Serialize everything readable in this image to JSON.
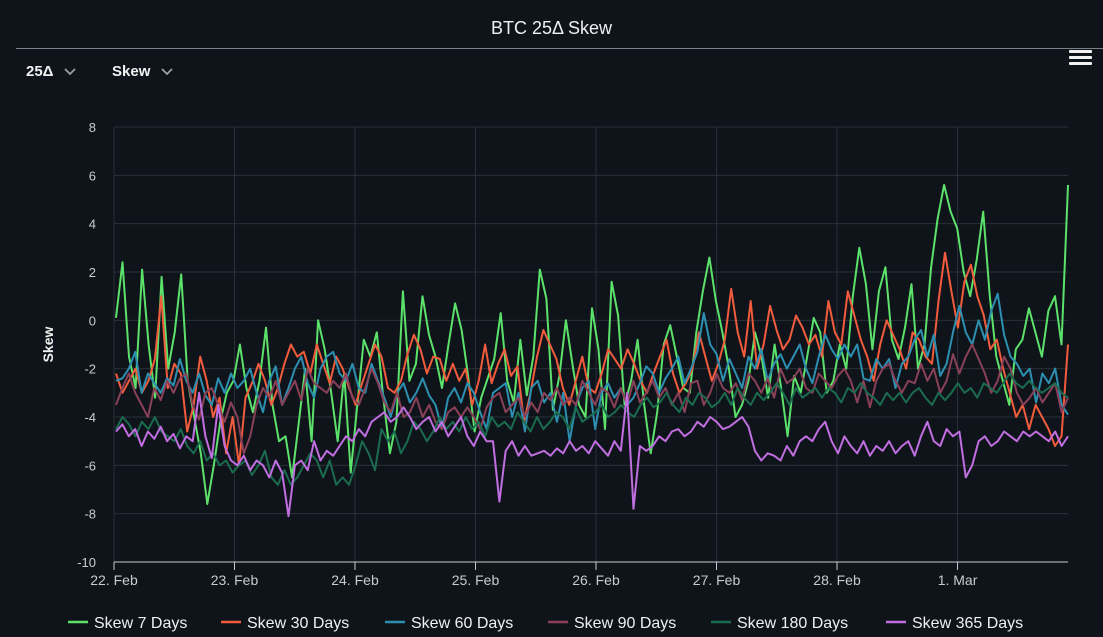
{
  "header": {
    "title": "BTC 25Δ Skew",
    "delta_selector": "25Δ",
    "metric_selector": "Skew"
  },
  "colors": {
    "background": "#0f141b",
    "grid": "#2a3038",
    "axis": "#c8ccd1"
  },
  "chart_data": {
    "type": "line",
    "title": "BTC 25Δ Skew",
    "ylabel": "Skew",
    "xlabel": "",
    "ylim": [
      -10,
      8
    ],
    "yticks": [
      8,
      6,
      4,
      2,
      0,
      -2,
      -4,
      -6,
      -8,
      -10
    ],
    "xlim": [
      "2023-02-22",
      "2023-03-01T22:00"
    ],
    "xticks": [
      {
        "x": "2023-02-22",
        "label": "22. Feb"
      },
      {
        "x": "2023-02-23",
        "label": "23. Feb"
      },
      {
        "x": "2023-02-24",
        "label": "24. Feb"
      },
      {
        "x": "2023-02-25",
        "label": "25. Feb"
      },
      {
        "x": "2023-02-26",
        "label": "26. Feb"
      },
      {
        "x": "2023-02-27",
        "label": "27. Feb"
      },
      {
        "x": "2023-02-28",
        "label": "28. Feb"
      },
      {
        "x": "2023-03-01",
        "label": "1. Mar"
      }
    ],
    "grid": true,
    "legend_position": "bottom",
    "series": [
      {
        "name": "Skew 7 Days",
        "color": "#5ce26a",
        "values": [
          0.1,
          2.4,
          -1.5,
          -2.8,
          2.1,
          -1.0,
          -3.2,
          1.8,
          -2.0,
          -0.5,
          1.9,
          -2.5,
          -4.0,
          -5.5,
          -7.6,
          -6.0,
          -4.2,
          -3.0,
          -2.5,
          -1.0,
          -2.8,
          -3.8,
          -2.5,
          -0.3,
          -3.5,
          -5.0,
          -4.8,
          -6.5,
          -4.3,
          -2.0,
          -5.0,
          0.0,
          -1.2,
          -3.0,
          -5.0,
          -2.2,
          -6.3,
          -3.5,
          -0.8,
          -1.5,
          -0.5,
          -3.2,
          -5.5,
          -4.2,
          1.2,
          -2.5,
          -1.8,
          1.0,
          -0.6,
          -1.5,
          -2.8,
          -1.0,
          0.7,
          -0.4,
          -2.3,
          -4.6,
          -3.2,
          -2.4,
          -1.6,
          0.3,
          -2.5,
          -3.4,
          -0.8,
          -3.1,
          -1.5,
          2.1,
          0.9,
          -3.7,
          -2.3,
          0.0,
          -1.8,
          -3.5,
          -4.0,
          0.5,
          -1.2,
          -4.5,
          1.6,
          0.2,
          -3.5,
          -2.5,
          -0.8,
          -3.5,
          -5.5,
          -3.8,
          -1.0,
          -0.2,
          -1.5,
          -2.8,
          -3.0,
          -0.5,
          1.2,
          2.6,
          0.8,
          -0.5,
          -2.0,
          -4.0,
          -3.5,
          -2.5,
          -0.5,
          -1.5,
          -3.2,
          -1.0,
          -2.8,
          -4.8,
          -2.3,
          -3.0,
          -1.5,
          0.1,
          -0.5,
          -3.0,
          -2.5,
          -1.0,
          -2.0,
          1.0,
          3.0,
          1.5,
          -1.2,
          1.2,
          2.2,
          -0.8,
          -1.6,
          -0.3,
          1.5,
          -2.0,
          -1.0,
          2.2,
          4.2,
          5.6,
          4.5,
          3.8,
          2.0,
          1.0,
          2.5,
          4.5,
          1.0,
          -1.5,
          -2.5,
          -3.5,
          -1.2,
          -0.8,
          0.5,
          -0.5,
          -1.5,
          0.4,
          1.0,
          -1.0,
          5.6
        ]
      },
      {
        "name": "Skew 30 Days",
        "color": "#f15c3d",
        "values": [
          -2.2,
          -3.0,
          -2.5,
          -2.0,
          -3.0,
          -2.5,
          -1.6,
          1.0,
          -2.8,
          -1.8,
          -2.2,
          -4.6,
          -3.5,
          -1.5,
          -2.5,
          -4.0,
          -3.2,
          -5.5,
          -4.0,
          -6.0,
          -3.2,
          -2.6,
          -1.8,
          -2.5,
          -3.5,
          -2.8,
          -1.8,
          -1.0,
          -1.5,
          -1.3,
          -2.2,
          -1.0,
          -1.8,
          -2.6,
          -1.5,
          -2.0,
          -2.8,
          -3.5,
          -2.6,
          -1.8,
          -1.0,
          -1.5,
          -2.8,
          -3.0,
          -2.5,
          -1.4,
          -0.6,
          -1.2,
          -2.2,
          -1.5,
          -1.6,
          -2.5,
          -1.8,
          -2.5,
          -2.0,
          -3.5,
          -2.5,
          -1.0,
          -2.6,
          -1.8,
          -1.2,
          -2.3,
          -1.9,
          -4.2,
          -3.0,
          -1.5,
          -0.4,
          -1.0,
          -1.6,
          -2.8,
          -3.5,
          -2.5,
          -1.5,
          -2.8,
          -3.0,
          -2.2,
          -1.2,
          -1.6,
          -2.0,
          -1.2,
          -1.8,
          -2.5,
          -3.0,
          -2.2,
          -1.5,
          -0.8,
          -2.2,
          -3.0,
          -2.6,
          -2.0,
          -0.5,
          -1.5,
          -2.5,
          -1.8,
          -0.8,
          1.3,
          -0.5,
          -1.5,
          0.8,
          -2.0,
          -1.0,
          0.6,
          -0.4,
          -1.2,
          -0.8,
          0.2,
          -0.3,
          -1.0,
          -0.6,
          -1.5,
          0.8,
          -0.5,
          -1.0,
          1.2,
          0.2,
          -0.8,
          -1.5,
          -2.5,
          -1.0,
          0.0,
          -0.6,
          -1.2,
          -2.0,
          -0.5,
          -0.8,
          -1.5,
          -1.8,
          0.8,
          2.8,
          1.2,
          -0.3,
          1.6,
          2.3,
          1.0,
          0.2,
          -1.2,
          -0.8,
          -2.0,
          -3.0,
          -4.0,
          -3.5,
          -4.5,
          -3.5,
          -4.0,
          -4.5,
          -5.2,
          -4.8,
          -1.0
        ]
      },
      {
        "name": "Skew 60 Days",
        "color": "#2d8fb0",
        "values": [
          -2.5,
          -2.4,
          -2.0,
          -1.3,
          -3.0,
          -2.2,
          -2.6,
          -3.0,
          -2.4,
          -2.7,
          -1.6,
          -2.5,
          -3.0,
          -2.2,
          -3.1,
          -3.5,
          -2.4,
          -3.0,
          -2.2,
          -2.8,
          -2.5,
          -2.0,
          -3.0,
          -3.8,
          -2.5,
          -1.9,
          -3.5,
          -2.8,
          -2.0,
          -1.5,
          -2.6,
          -3.2,
          -2.0,
          -1.5,
          -1.3,
          -2.2,
          -2.5,
          -1.8,
          -2.8,
          -3.0,
          -1.8,
          -2.5,
          -3.2,
          -4.0,
          -3.0,
          -2.6,
          -3.4,
          -3.0,
          -2.4,
          -3.1,
          -3.5,
          -4.5,
          -3.2,
          -2.8,
          -3.4,
          -2.6,
          -3.0,
          -3.8,
          -4.5,
          -3.0,
          -2.8,
          -2.6,
          -4.0,
          -3.0,
          -4.6,
          -2.8,
          -2.5,
          -3.4,
          -3.0,
          -4.2,
          -3.0,
          -5.0,
          -3.5,
          -2.8,
          -2.5,
          -4.5,
          -3.0,
          -2.6,
          -3.2,
          -2.8,
          -3.5,
          -3.2,
          -2.6,
          -1.9,
          -2.2,
          -3.0,
          -2.4,
          -2.0,
          -1.5,
          -2.6,
          -2.0,
          -1.3,
          0.3,
          -1.0,
          -1.4,
          -2.5,
          -1.6,
          -2.2,
          -2.8,
          -1.5,
          -2.0,
          -1.2,
          -2.5,
          -1.8,
          -1.4,
          -2.0,
          -1.5,
          -1.0,
          -2.0,
          -2.6,
          -1.5,
          -0.6,
          -1.2,
          -1.6,
          -1.0,
          -1.5,
          -1.0,
          -2.4,
          -2.5,
          -1.6,
          -2.0,
          -1.6,
          -2.8,
          -1.8,
          -1.5,
          -0.8,
          -0.4,
          -1.5,
          -0.6,
          -2.3,
          -1.8,
          -0.5,
          0.6,
          -0.5,
          -1.0,
          0.0,
          -0.8,
          0.4,
          1.1,
          -0.6,
          -1.5,
          -1.8,
          -2.3,
          -2.0,
          -3.4,
          -2.2,
          -2.6,
          -2.0,
          -3.5,
          -3.9
        ]
      },
      {
        "name": "Skew 90 Days",
        "color": "#8a4158",
        "values": [
          -3.5,
          -2.8,
          -2.2,
          -3.0,
          -3.5,
          -4.0,
          -2.8,
          -3.3,
          -2.5,
          -3.0,
          -2.4,
          -2.2,
          -3.5,
          -4.1,
          -3.0,
          -2.8,
          -3.5,
          -4.2,
          -3.4,
          -4.0,
          -5.5,
          -4.8,
          -3.5,
          -2.8,
          -3.2,
          -2.5,
          -3.5,
          -3.0,
          -2.5,
          -3.3,
          -2.0,
          -2.6,
          -2.8,
          -3.0,
          -2.5,
          -2.8,
          -2.2,
          -3.2,
          -3.5,
          -2.8,
          -2.0,
          -2.6,
          -3.4,
          -3.8,
          -3.0,
          -4.0,
          -3.8,
          -3.2,
          -4.0,
          -3.5,
          -4.2,
          -4.5,
          -3.8,
          -3.6,
          -4.0,
          -3.6,
          -4.0,
          -4.5,
          -3.6,
          -3.2,
          -3.0,
          -3.8,
          -3.5,
          -3.2,
          -4.0,
          -3.4,
          -3.8,
          -3.0,
          -3.3,
          -2.8,
          -3.5,
          -3.2,
          -3.5,
          -2.5,
          -3.0,
          -3.5,
          -2.8,
          -3.0,
          -3.6,
          -2.8,
          -3.5,
          -2.5,
          -3.4,
          -3.0,
          -2.5,
          -3.2,
          -2.8,
          -3.5,
          -3.0,
          -3.8,
          -2.6,
          -2.5,
          -3.5,
          -3.0,
          -2.2,
          -2.8,
          -3.0,
          -2.6,
          -3.3,
          -2.2,
          -2.5,
          -3.0,
          -2.4,
          -3.2,
          -2.0,
          -2.6,
          -2.4,
          -2.0,
          -2.8,
          -3.0,
          -2.2,
          -2.5,
          -2.8,
          -2.3,
          -2.0,
          -2.5,
          -3.4,
          -2.5,
          -3.6,
          -2.5,
          -2.0,
          -1.8,
          -2.5,
          -3.0,
          -2.5,
          -2.6,
          -1.8,
          -2.5,
          -2.0,
          -3.0,
          -2.5,
          -1.4,
          -2.2,
          -1.5,
          -1.0,
          -1.6,
          -2.2,
          -3.0,
          -2.5,
          -1.5,
          -2.0,
          -3.0,
          -3.5,
          -3.2,
          -2.8,
          -3.4,
          -3.0,
          -2.6,
          -3.8,
          -3.2
        ]
      },
      {
        "name": "Skew 180 Days",
        "color": "#1b6b4e",
        "values": [
          -4.5,
          -4.0,
          -4.3,
          -4.8,
          -4.2,
          -4.5,
          -4.0,
          -4.6,
          -4.8,
          -5.0,
          -4.5,
          -5.2,
          -5.5,
          -5.0,
          -5.8,
          -5.5,
          -6.0,
          -5.8,
          -6.3,
          -6.0,
          -5.8,
          -6.4,
          -6.0,
          -5.4,
          -6.5,
          -6.8,
          -6.2,
          -6.8,
          -6.5,
          -6.0,
          -5.5,
          -5.8,
          -6.5,
          -5.8,
          -6.8,
          -6.5,
          -6.8,
          -6.0,
          -5.0,
          -5.5,
          -6.2,
          -4.5,
          -5.0,
          -4.6,
          -5.5,
          -5.0,
          -4.2,
          -4.5,
          -5.0,
          -4.6,
          -4.0,
          -4.5,
          -4.2,
          -4.6,
          -4.0,
          -4.5,
          -4.2,
          -4.8,
          -4.0,
          -4.4,
          -4.2,
          -4.5,
          -3.8,
          -4.2,
          -4.6,
          -4.0,
          -4.5,
          -4.2,
          -3.8,
          -4.0,
          -4.5,
          -3.6,
          -4.2,
          -4.0,
          -3.8,
          -3.5,
          -4.0,
          -3.8,
          -3.5,
          -3.8,
          -4.0,
          -3.5,
          -3.2,
          -3.6,
          -3.4,
          -3.0,
          -3.5,
          -3.8,
          -3.2,
          -3.5,
          -3.0,
          -3.2,
          -3.6,
          -3.4,
          -3.0,
          -3.5,
          -2.8,
          -3.2,
          -3.5,
          -3.0,
          -3.3,
          -3.0,
          -2.6,
          -3.0,
          -3.5,
          -2.8,
          -3.2,
          -3.0,
          -2.8,
          -3.2,
          -2.8,
          -3.0,
          -3.4,
          -2.8,
          -3.0,
          -2.6,
          -3.0,
          -3.2,
          -3.5,
          -3.0,
          -3.3,
          -3.0,
          -3.4,
          -3.0,
          -2.8,
          -3.2,
          -3.5,
          -3.0,
          -3.3,
          -3.0,
          -2.6,
          -3.0,
          -2.8,
          -3.2,
          -2.6,
          -2.8,
          -3.0,
          -2.6,
          -2.2,
          -2.6,
          -2.8,
          -2.5,
          -2.8,
          -3.0,
          -2.8,
          -2.6,
          -3.0,
          -3.2
        ]
      },
      {
        "name": "Skew 365 Days",
        "color": "#c06ee0",
        "values": [
          -4.6,
          -4.3,
          -4.8,
          -4.5,
          -5.2,
          -4.6,
          -4.9,
          -4.4,
          -5.0,
          -4.7,
          -5.3,
          -4.8,
          -5.0,
          -3.0,
          -4.8,
          -5.7,
          -3.5,
          -5.2,
          -5.8,
          -6.0,
          -5.6,
          -6.2,
          -5.8,
          -6.0,
          -6.5,
          -5.8,
          -6.3,
          -8.1,
          -6.0,
          -5.8,
          -6.2,
          -5.0,
          -5.8,
          -5.4,
          -5.6,
          -5.2,
          -4.8,
          -5.0,
          -4.5,
          -4.8,
          -4.2,
          -4.0,
          -3.8,
          -4.2,
          -4.0,
          -3.6,
          -4.0,
          -4.5,
          -4.2,
          -4.0,
          -4.6,
          -4.2,
          -4.8,
          -4.4,
          -4.0,
          -4.8,
          -5.2,
          -4.6,
          -5.0,
          -5.0,
          -7.5,
          -5.4,
          -5.0,
          -5.6,
          -5.2,
          -5.6,
          -5.5,
          -5.4,
          -5.6,
          -5.3,
          -5.5,
          -5.0,
          -5.4,
          -5.2,
          -5.5,
          -5.0,
          -5.3,
          -5.6,
          -5.0,
          -5.4,
          -3.0,
          -7.8,
          -5.2,
          -5.4,
          -5.2,
          -4.8,
          -5.0,
          -4.6,
          -4.5,
          -4.8,
          -4.6,
          -4.2,
          -4.4,
          -4.0,
          -4.2,
          -4.5,
          -4.4,
          -4.2,
          -4.0,
          -4.4,
          -5.4,
          -5.8,
          -5.5,
          -5.6,
          -5.8,
          -5.2,
          -5.6,
          -5.0,
          -4.8,
          -5.0,
          -4.5,
          -4.2,
          -5.0,
          -5.5,
          -4.8,
          -5.2,
          -5.5,
          -5.0,
          -5.6,
          -5.2,
          -5.4,
          -5.0,
          -5.5,
          -5.2,
          -5.0,
          -5.6,
          -4.8,
          -4.2,
          -5.0,
          -5.2,
          -4.5,
          -4.8,
          -4.6,
          -6.5,
          -6.0,
          -5.0,
          -4.8,
          -5.2,
          -5.0,
          -4.6,
          -4.8,
          -5.0,
          -4.6,
          -4.8,
          -4.6,
          -4.8,
          -5.0,
          -4.6,
          -5.2,
          -4.8
        ]
      }
    ]
  }
}
